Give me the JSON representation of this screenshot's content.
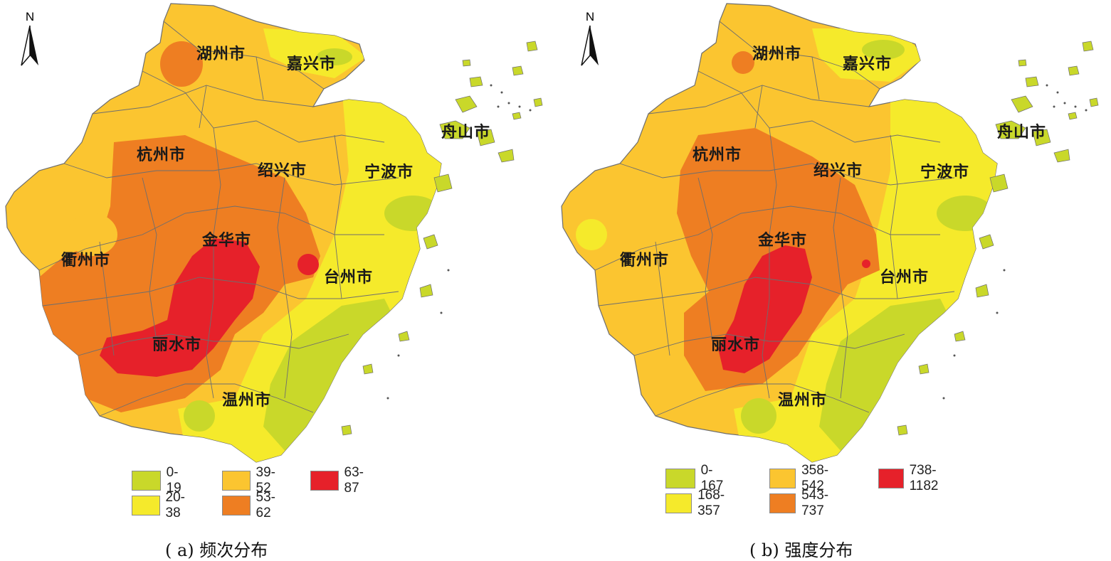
{
  "colors": {
    "class1": "#c9d82a",
    "class2": "#f5ea2b",
    "class3": "#fbc530",
    "class4": "#ee7e22",
    "class5": "#e6212a",
    "border": "#6e6e6e"
  },
  "panels": [
    {
      "north_label": "N",
      "cities": {
        "huzhou": "湖州市",
        "jiaxing": "嘉兴市",
        "hangzhou": "杭州市",
        "shaoxing": "绍兴市",
        "ningbo": "宁波市",
        "zhoushan": "舟山市",
        "quzhou": "衢州市",
        "jinhua": "金华市",
        "taizhou": "台州市",
        "lishui": "丽水市",
        "wenzhou": "温州市"
      },
      "legend": [
        "0-19",
        "20-38",
        "39-52",
        "53-62",
        "63-87"
      ],
      "caption": "( a) 频次分布"
    },
    {
      "north_label": "N",
      "cities": {
        "huzhou": "湖州市",
        "jiaxing": "嘉兴市",
        "hangzhou": "杭州市",
        "shaoxing": "绍兴市",
        "ningbo": "宁波市",
        "zhoushan": "舟山市",
        "quzhou": "衢州市",
        "jinhua": "金华市",
        "taizhou": "台州市",
        "lishui": "丽水市",
        "wenzhou": "温州市"
      },
      "legend": [
        "0-167",
        "168-357",
        "358-542",
        "543-737",
        "738-1182"
      ],
      "caption": "( b) 强度分布"
    }
  ]
}
